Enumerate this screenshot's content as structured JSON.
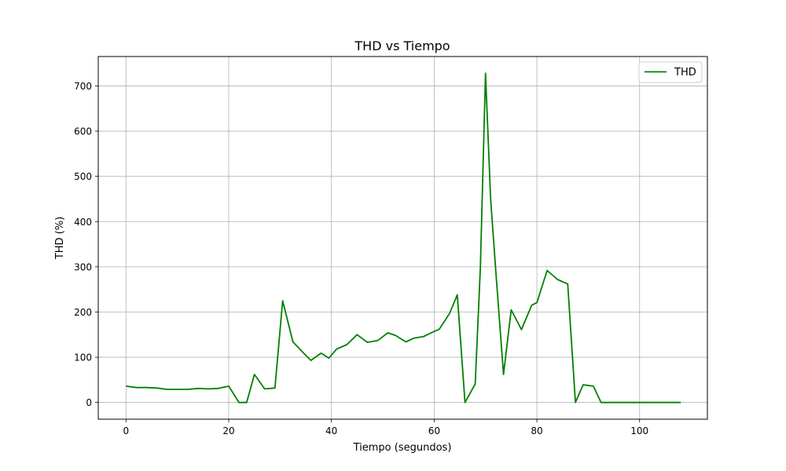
{
  "chart_data": {
    "type": "line",
    "title": "THD vs Tiempo",
    "xlabel": "Tiempo (segundos)",
    "ylabel": "THD (%)",
    "xlim": [
      -5.4,
      113.2
    ],
    "ylim": [
      -37,
      765
    ],
    "xticks": [
      0,
      20,
      40,
      60,
      80,
      100
    ],
    "yticks": [
      0,
      100,
      200,
      300,
      400,
      500,
      600,
      700
    ],
    "grid": true,
    "legend_position": "top-right",
    "series": [
      {
        "name": "THD",
        "color": "#008000",
        "x": [
          0,
          2,
          4,
          6,
          8,
          10,
          12,
          14,
          16,
          18,
          20,
          22,
          23.5,
          25,
          27,
          29,
          30.5,
          32.5,
          34.5,
          36,
          38,
          39.5,
          41,
          43,
          45,
          47,
          49,
          51,
          52.5,
          54.5,
          56,
          58,
          60,
          61,
          63,
          64.5,
          66,
          68,
          69,
          70,
          71,
          72,
          73.5,
          75,
          77,
          79,
          80,
          82,
          84,
          86,
          87.5,
          89,
          91,
          92.5,
          94,
          96,
          98,
          100,
          102,
          104,
          106,
          108
        ],
        "values": [
          36,
          33,
          33,
          32,
          29,
          29,
          29,
          31,
          30,
          31,
          36,
          0,
          0,
          62,
          30,
          32,
          225,
          134,
          110,
          93,
          109,
          98,
          118,
          128,
          150,
          133,
          137,
          154,
          148,
          134,
          142,
          146,
          157,
          162,
          197,
          238,
          0,
          41,
          300,
          728,
          450,
          290,
          62,
          205,
          161,
          215,
          221,
          292,
          272,
          262,
          0,
          39,
          36,
          0,
          0,
          0,
          0,
          0,
          0,
          0,
          0,
          0
        ]
      }
    ]
  }
}
